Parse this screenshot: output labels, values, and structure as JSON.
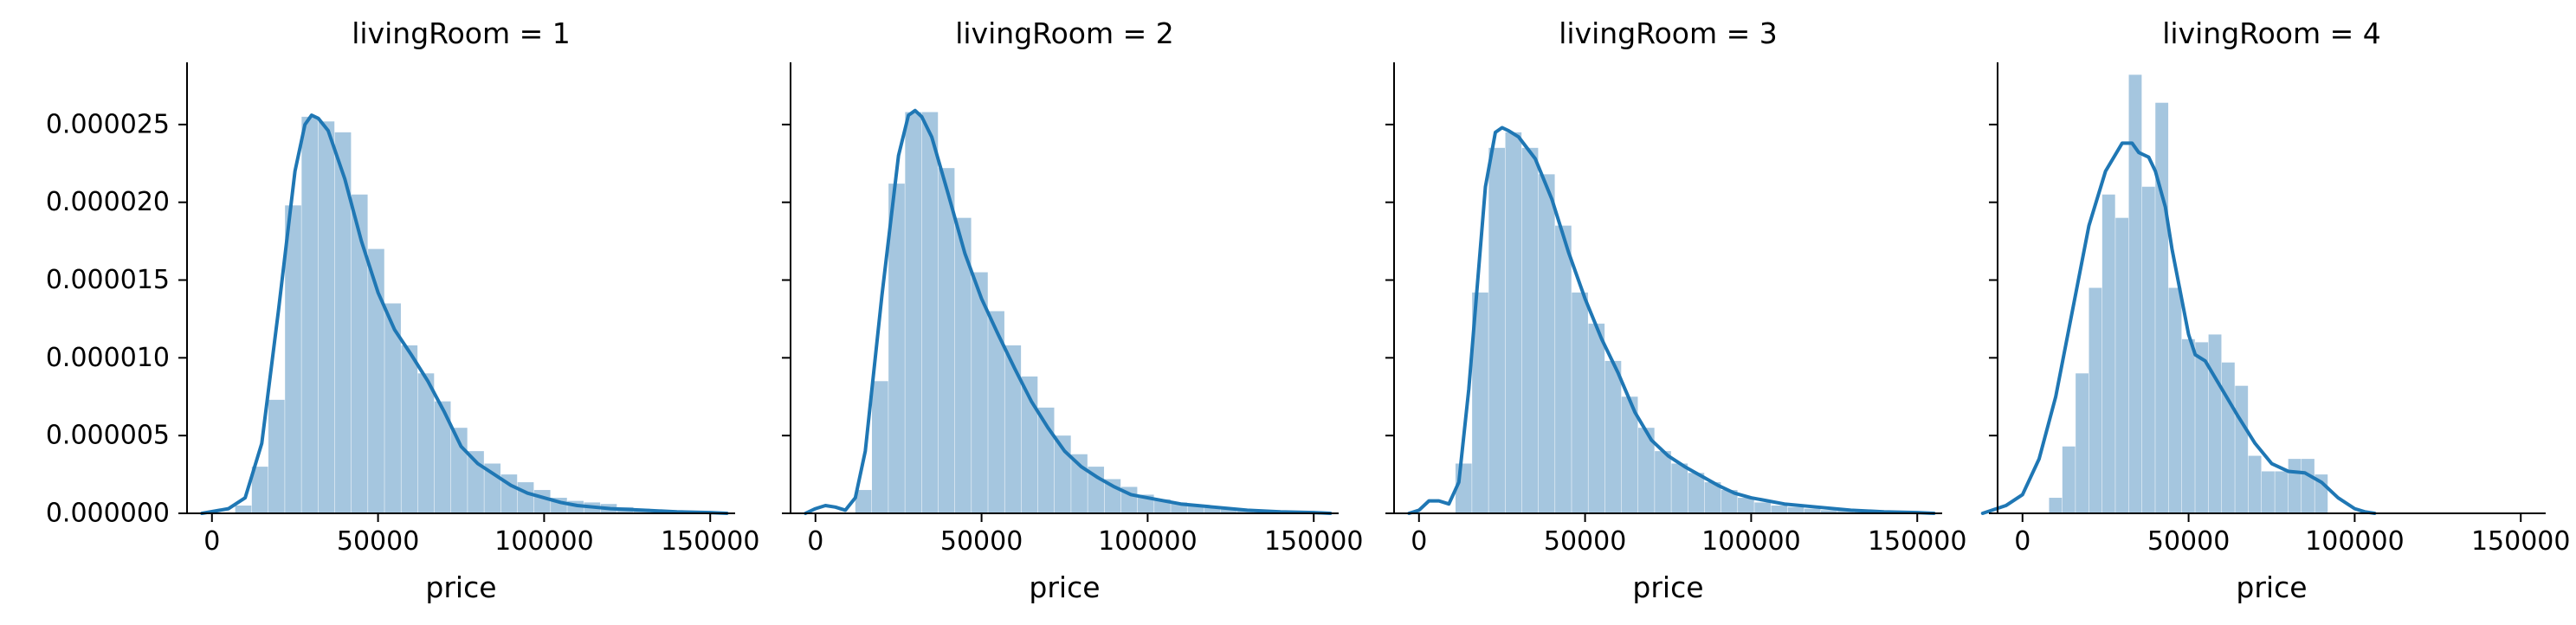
{
  "colors": {
    "bar": "#a5c6df",
    "kde": "#1f77b4",
    "axis": "#000000"
  },
  "chart_data": [
    {
      "type": "histogram+kde",
      "title": "livingRoom = 1",
      "xlabel": "price",
      "ylabel": "",
      "xlim": [
        -7500,
        157500
      ],
      "ylim": [
        0,
        2.9e-05
      ],
      "xticks": [
        0,
        50000,
        100000,
        150000
      ],
      "xtick_labels": [
        "0",
        "50000",
        "100000",
        "150000"
      ],
      "yticks": [
        0,
        5e-06,
        1e-05,
        1.5e-05,
        2e-05,
        2.5e-05
      ],
      "ytick_labels": [
        "0.000000",
        "0.000005",
        "0.000010",
        "0.000015",
        "0.000020",
        "0.000025"
      ],
      "hist_edges": [
        7000,
        12000,
        17000,
        22000,
        27000,
        32000,
        37000,
        42000,
        47000,
        52000,
        57000,
        62000,
        67000,
        72000,
        77000,
        82000,
        87000,
        92000,
        97000,
        102000,
        107000,
        112000,
        117000,
        122000,
        127000,
        132000,
        137000,
        142000,
        147000,
        152000
      ],
      "hist_values": [
        5e-07,
        3e-06,
        7.3e-06,
        1.98e-05,
        2.55e-05,
        2.52e-05,
        2.45e-05,
        2.05e-05,
        1.7e-05,
        1.35e-05,
        1.08e-05,
        9e-06,
        7.2e-06,
        5.5e-06,
        4e-06,
        3.2e-06,
        2.5e-06,
        2e-06,
        1.5e-06,
        1e-06,
        8e-07,
        7e-07,
        6e-07,
        4e-07,
        3e-07,
        2e-07,
        2e-07,
        1e-07,
        1e-07
      ],
      "kde_x": [
        -3000,
        5000,
        10000,
        15000,
        20000,
        25000,
        28000,
        30000,
        32000,
        35000,
        40000,
        45000,
        50000,
        55000,
        60000,
        65000,
        70000,
        75000,
        80000,
        85000,
        90000,
        95000,
        100000,
        105000,
        110000,
        115000,
        120000,
        130000,
        140000,
        150000,
        155000
      ],
      "kde_y": [
        0,
        3e-07,
        1e-06,
        4.5e-06,
        1.3e-05,
        2.2e-05,
        2.5e-05,
        2.56e-05,
        2.54e-05,
        2.46e-05,
        2.15e-05,
        1.75e-05,
        1.42e-05,
        1.18e-05,
        1.02e-05,
        8.5e-06,
        6.5e-06,
        4.3e-06,
        3.2e-06,
        2.5e-06,
        1.8e-06,
        1.3e-06,
        1e-06,
        7e-07,
        5e-07,
        4e-07,
        3e-07,
        2e-07,
        1e-07,
        5e-08,
        0
      ]
    },
    {
      "type": "histogram+kde",
      "title": "livingRoom = 2",
      "xlabel": "price",
      "ylabel": "",
      "xlim": [
        -7500,
        157500
      ],
      "ylim": [
        0,
        2.9e-05
      ],
      "xticks": [
        0,
        50000,
        100000,
        150000
      ],
      "xtick_labels": [
        "0",
        "50000",
        "100000",
        "150000"
      ],
      "yticks": [
        0,
        5e-06,
        1e-05,
        1.5e-05,
        2e-05,
        2.5e-05
      ],
      "ytick_labels": [],
      "hist_edges": [
        12000,
        17000,
        22000,
        27000,
        32000,
        37000,
        42000,
        47000,
        52000,
        57000,
        62000,
        67000,
        72000,
        77000,
        82000,
        87000,
        92000,
        97000,
        102000,
        107000,
        112000,
        117000,
        122000,
        127000,
        132000,
        137000,
        142000,
        147000,
        152000
      ],
      "hist_values": [
        1.5e-06,
        8.5e-06,
        2.12e-05,
        2.58e-05,
        2.58e-05,
        2.22e-05,
        1.9e-05,
        1.55e-05,
        1.3e-05,
        1.08e-05,
        8.8e-06,
        6.8e-06,
        5e-06,
        3.8e-06,
        3e-06,
        2.2e-06,
        1.7e-06,
        1.2e-06,
        9e-07,
        7e-07,
        5e-07,
        4e-07,
        3e-07,
        2e-07,
        2e-07,
        1e-07,
        1e-07,
        5e-08
      ],
      "kde_x": [
        -3000,
        0,
        3000,
        6000,
        9000,
        12000,
        15000,
        20000,
        25000,
        28000,
        30000,
        32000,
        35000,
        40000,
        45000,
        50000,
        55000,
        60000,
        65000,
        70000,
        75000,
        80000,
        85000,
        90000,
        95000,
        100000,
        110000,
        120000,
        130000,
        140000,
        150000,
        155000
      ],
      "kde_y": [
        0,
        3e-07,
        5e-07,
        4e-07,
        2e-07,
        1e-06,
        4e-06,
        1.4e-05,
        2.3e-05,
        2.56e-05,
        2.59e-05,
        2.55e-05,
        2.42e-05,
        2.05e-05,
        1.67e-05,
        1.38e-05,
        1.15e-05,
        9.3e-06,
        7.2e-06,
        5.5e-06,
        4e-06,
        3e-06,
        2.3e-06,
        1.7e-06,
        1.2e-06,
        1e-06,
        6e-07,
        4e-07,
        2e-07,
        1e-07,
        5e-08,
        0
      ]
    },
    {
      "type": "histogram+kde",
      "title": "livingRoom = 3",
      "xlabel": "price",
      "ylabel": "",
      "xlim": [
        -7500,
        157500
      ],
      "ylim": [
        0,
        2.9e-05
      ],
      "xticks": [
        0,
        50000,
        100000,
        150000
      ],
      "xtick_labels": [
        "0",
        "50000",
        "100000",
        "150000"
      ],
      "yticks": [
        0,
        5e-06,
        1e-05,
        1.5e-05,
        2e-05,
        2.5e-05
      ],
      "ytick_labels": [],
      "hist_edges": [
        11000,
        16000,
        21000,
        26000,
        31000,
        36000,
        41000,
        46000,
        51000,
        56000,
        61000,
        66000,
        71000,
        76000,
        81000,
        86000,
        91000,
        96000,
        101000,
        106000,
        111000,
        116000,
        121000,
        126000,
        131000,
        136000,
        141000,
        146000,
        151000
      ],
      "hist_values": [
        3.2e-06,
        1.42e-05,
        2.35e-05,
        2.45e-05,
        2.35e-05,
        2.18e-05,
        1.85e-05,
        1.42e-05,
        1.22e-05,
        9.8e-06,
        7.5e-06,
        5.5e-06,
        4e-06,
        3.2e-06,
        2.6e-06,
        2e-06,
        1.5e-06,
        1e-06,
        7e-07,
        5e-07,
        4e-07,
        3e-07,
        2e-07,
        2e-07,
        1e-07,
        1e-07,
        5e-08,
        5e-08
      ],
      "kde_x": [
        -3000,
        0,
        3000,
        6000,
        9000,
        12000,
        15000,
        20000,
        23000,
        25000,
        27000,
        30000,
        35000,
        40000,
        45000,
        50000,
        55000,
        60000,
        65000,
        70000,
        75000,
        80000,
        85000,
        90000,
        95000,
        100000,
        110000,
        120000,
        130000,
        140000,
        150000,
        155000
      ],
      "kde_y": [
        0,
        2e-07,
        8e-07,
        8e-07,
        6e-07,
        2e-06,
        8e-06,
        2.1e-05,
        2.45e-05,
        2.48e-05,
        2.46e-05,
        2.42e-05,
        2.28e-05,
        2.02e-05,
        1.68e-05,
        1.38e-05,
        1.12e-05,
        9e-06,
        6.5e-06,
        4.7e-06,
        3.7e-06,
        3e-06,
        2.4e-06,
        1.8e-06,
        1.3e-06,
        1e-06,
        6e-07,
        4e-07,
        2e-07,
        1e-07,
        5e-08,
        0
      ]
    },
    {
      "type": "histogram+kde",
      "title": "livingRoom = 4",
      "xlabel": "price",
      "ylabel": "",
      "xlim": [
        -7500,
        157500
      ],
      "ylim": [
        0,
        2.9e-05
      ],
      "xticks": [
        0,
        50000,
        100000,
        150000
      ],
      "xtick_labels": [
        "0",
        "50000",
        "100000",
        "150000"
      ],
      "yticks": [
        0,
        5e-06,
        1e-05,
        1.5e-05,
        2e-05,
        2.5e-05
      ],
      "ytick_labels": [],
      "hist_edges": [
        8000,
        12000,
        16000,
        20000,
        24000,
        28000,
        32000,
        36000,
        40000,
        44000,
        48000,
        52000,
        56000,
        60000,
        64000,
        68000,
        72000,
        76000,
        80000,
        84000,
        88000,
        92000
      ],
      "hist_values": [
        1e-06,
        4.3e-06,
        9e-06,
        1.45e-05,
        2.05e-05,
        1.9e-05,
        2.82e-05,
        2.1e-05,
        2.64e-05,
        1.45e-05,
        1.12e-05,
        1.1e-05,
        1.15e-05,
        9.7e-06,
        8.2e-06,
        3.7e-06,
        2.7e-06,
        2.7e-06,
        3.5e-06,
        3.5e-06,
        2.5e-06
      ],
      "kde_x": [
        -12000,
        -5000,
        0,
        5000,
        10000,
        15000,
        20000,
        25000,
        30000,
        33000,
        35000,
        38000,
        40000,
        43000,
        45000,
        50000,
        52000,
        55000,
        60000,
        65000,
        70000,
        75000,
        80000,
        85000,
        90000,
        95000,
        100000,
        103000,
        106000
      ],
      "kde_y": [
        0,
        5e-07,
        1.2e-06,
        3.5e-06,
        7.5e-06,
        1.3e-05,
        1.85e-05,
        2.2e-05,
        2.38e-05,
        2.38e-05,
        2.32e-05,
        2.29e-05,
        2.2e-05,
        1.97e-05,
        1.7e-05,
        1.15e-05,
        1.02e-05,
        9.8e-06,
        8e-06,
        6.2e-06,
        4.5e-06,
        3.2e-06,
        2.7e-06,
        2.6e-06,
        2e-06,
        1e-06,
        3e-07,
        1e-07,
        0
      ]
    }
  ]
}
